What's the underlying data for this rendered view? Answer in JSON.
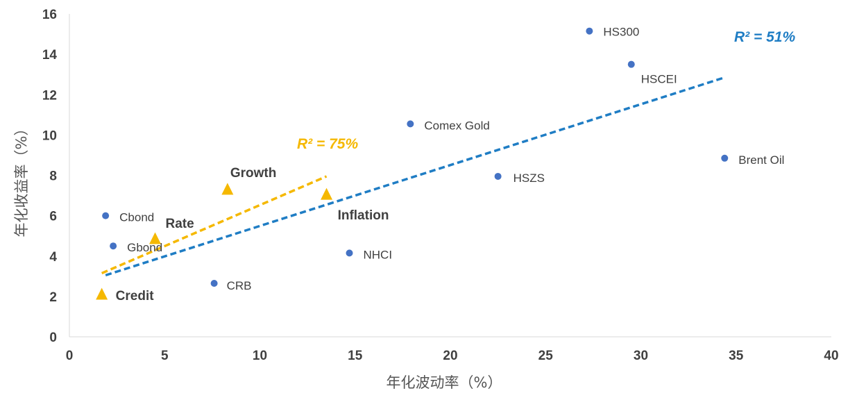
{
  "chart_data": {
    "type": "scatter",
    "xlabel": "年化波动率（%）",
    "ylabel": "年化收益率（%）",
    "xlim": [
      0,
      40
    ],
    "ylim": [
      0,
      16
    ],
    "x_ticks": [
      "0",
      "5",
      "10",
      "15",
      "20",
      "25",
      "30",
      "35",
      "40"
    ],
    "y_ticks": [
      "0",
      "2",
      "4",
      "6",
      "8",
      "10",
      "12",
      "14",
      "16"
    ],
    "grid": false,
    "series": [
      {
        "role": "assets",
        "marker": "circle",
        "color": "#4472C4",
        "points": [
          {
            "label": "Cbond",
            "x": 1.9,
            "y": 6.0
          },
          {
            "label": "Gbond",
            "x": 2.3,
            "y": 4.5
          },
          {
            "label": "CRB",
            "x": 7.6,
            "y": 2.65
          },
          {
            "label": "NHCI",
            "x": 14.7,
            "y": 4.15
          },
          {
            "label": "Comex Gold",
            "x": 17.9,
            "y": 10.55
          },
          {
            "label": "HSZS",
            "x": 22.5,
            "y": 7.95
          },
          {
            "label": "HS300",
            "x": 27.3,
            "y": 15.15
          },
          {
            "label": "HSCEI",
            "x": 29.5,
            "y": 13.5
          },
          {
            "label": "Brent Oil",
            "x": 34.4,
            "y": 8.85
          }
        ]
      },
      {
        "role": "factors",
        "marker": "triangle",
        "color": "#F5B800",
        "points": [
          {
            "label": "Credit",
            "x": 1.7,
            "y": 2.1
          },
          {
            "label": "Rate",
            "x": 4.5,
            "y": 4.85
          },
          {
            "label": "Growth",
            "x": 8.3,
            "y": 7.3
          },
          {
            "label": "Inflation",
            "x": 13.5,
            "y": 7.05
          }
        ]
      }
    ],
    "trendlines": [
      {
        "style": "dashed",
        "color": "#1F7DC4",
        "from": [
          1.9,
          3.05
        ],
        "to": [
          34.4,
          12.85
        ],
        "label": "R² = 51%"
      },
      {
        "style": "dashed",
        "color": "#F5B800",
        "from": [
          1.7,
          3.15
        ],
        "to": [
          13.5,
          7.95
        ],
        "label": "R² = 75%"
      }
    ]
  }
}
